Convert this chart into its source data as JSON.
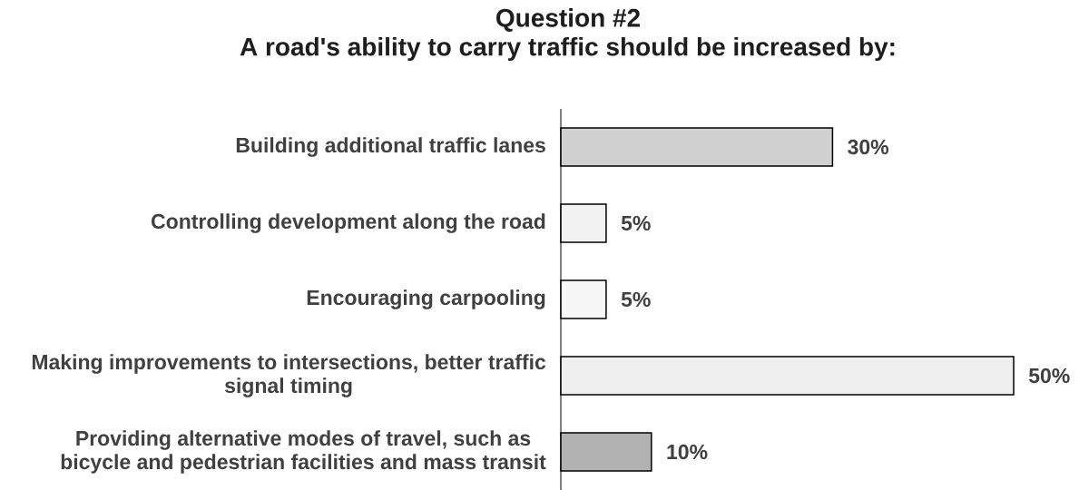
{
  "chart_data": {
    "type": "bar",
    "orientation": "horizontal",
    "title": "Question #2",
    "subtitle": "A road's ability to carry traffic should be increased by:",
    "categories": [
      "Building additional traffic lanes",
      "Controlling development along the road",
      "Encouraging carpooling",
      "Making improvements to intersections, better traffic signal timing",
      "Providing alternative modes of travel, such as bicycle and pedestrian facilities and mass transit"
    ],
    "values": [
      30,
      5,
      5,
      50,
      10
    ],
    "colors": [
      "#d0d0d0",
      "#f2f2f2",
      "#f7f7f7",
      "#efefef",
      "#b2b2b2"
    ],
    "value_labels": [
      "30%",
      "5%",
      "5%",
      "50%",
      "10%"
    ],
    "tick_labels": "y"
  }
}
